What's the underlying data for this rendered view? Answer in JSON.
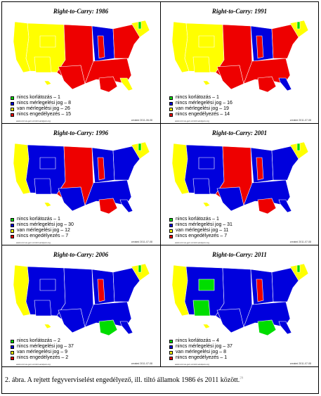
{
  "colors": {
    "green": "#00dd00",
    "blue": "#0000dd",
    "yellow": "#ffff00",
    "red": "#ee0000"
  },
  "panels": [
    {
      "title": "Right-to-Carry: 1986",
      "legend": [
        "nincs korlátozás – 1",
        "nincs mérlegelési jog – 8",
        "van mérlegelési jog – 26",
        "nincs engedélyezés – 15"
      ],
      "credit": "www.corvus-gun-control-analysis.org",
      "date": "created 2011-06-08",
      "dominant": "yellow"
    },
    {
      "title": "Right-to-Carry: 1991",
      "legend": [
        "nincs korlátozás – 1",
        "nincs mérlegelési jog – 16",
        "van mérlegelési jog – 19",
        "nincs engedélyezés – 14"
      ],
      "credit": "www.corvus-gun-control-analysis.org",
      "date": "created 2011-07-08",
      "dominant": "yellow"
    },
    {
      "title": "Right-to-Carry: 1996",
      "legend": [
        "nincs korlátozás – 1",
        "nincs mérlegelési jog – 30",
        "van mérlegelési jog – 12",
        "nincs engedélyezés – 7"
      ],
      "credit": "www.corvus-gun-control-analysis.org",
      "date": "created 2011-07-08",
      "dominant": "blue"
    },
    {
      "title": "Right-to-Carry: 2001",
      "legend": [
        "nincs korlátozás – 1",
        "nincs mérlegelési jog – 31",
        "van mérlegelési jog – 11",
        "nincs engedélyezés – 7"
      ],
      "credit": "www.corvus-gun-control-analysis.org",
      "date": "created 2011-07-08",
      "dominant": "blue"
    },
    {
      "title": "Right-to-Carry: 2006",
      "legend": [
        "nincs korlátozás – 2",
        "nincs mérlegelési jog – 37",
        "van mérlegelési jog – 9",
        "nincs engedélyezés – 2"
      ],
      "credit": "www.corvus-gun-control-analysis.org",
      "date": "created 2011-07-08",
      "dominant": "blue"
    },
    {
      "title": "Right-to-Carry: 2011",
      "legend": [
        "nincs korlátozás – 4",
        "nincs mérlegelési jog – 37",
        "van mérlegelési jog – 8",
        "nincs engedélyezés – 1"
      ],
      "credit": "www.corvus-gun-control-analysis.org",
      "date": "created 2011-07-08",
      "dominant": "blue"
    }
  ],
  "caption": {
    "text": "2. ábra. A rejtett fegyverviselést engedélyező, ill. tiltó államok 1986 és 2011 között.",
    "footnote": "26"
  }
}
